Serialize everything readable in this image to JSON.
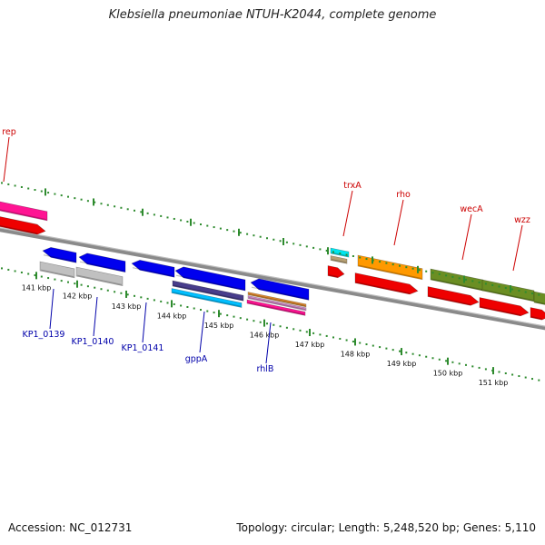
{
  "title": "Klebsiella pneumoniae NTUH-K2044, complete genome",
  "footer": {
    "accession": "Accession: NC_012731",
    "summary": "Topology: circular; Length: 5,248,520 bp; Genes: 5,110"
  },
  "colors": {
    "backbone": "#8a8a8a",
    "tick": "#2e8b2e",
    "gene_label_top": "#cc0000",
    "gene_label_bottom": "#0000aa",
    "kbp_label": "#111111"
  },
  "kbp_ticks": [
    "141 kbp",
    "142 kbp",
    "143 kbp",
    "144 kbp",
    "145 kbp",
    "146 kbp",
    "147 kbp",
    "148 kbp",
    "149 kbp",
    "150 kbp",
    "151 kbp"
  ],
  "gene_labels_top": [
    {
      "id": "rep",
      "label": "rep"
    },
    {
      "id": "trxA",
      "label": "trxA"
    },
    {
      "id": "rho",
      "label": "rho"
    },
    {
      "id": "wecA",
      "label": "wecA"
    },
    {
      "id": "wzz",
      "label": "wzz"
    }
  ],
  "gene_labels_bottom": [
    {
      "id": "KP1_0139",
      "label": "KP1_0139"
    },
    {
      "id": "KP1_0140",
      "label": "KP1_0140"
    },
    {
      "id": "KP1_0141",
      "label": "KP1_0141"
    },
    {
      "id": "gppA",
      "label": "gppA"
    },
    {
      "id": "rhlB",
      "label": "rhlB"
    }
  ]
}
